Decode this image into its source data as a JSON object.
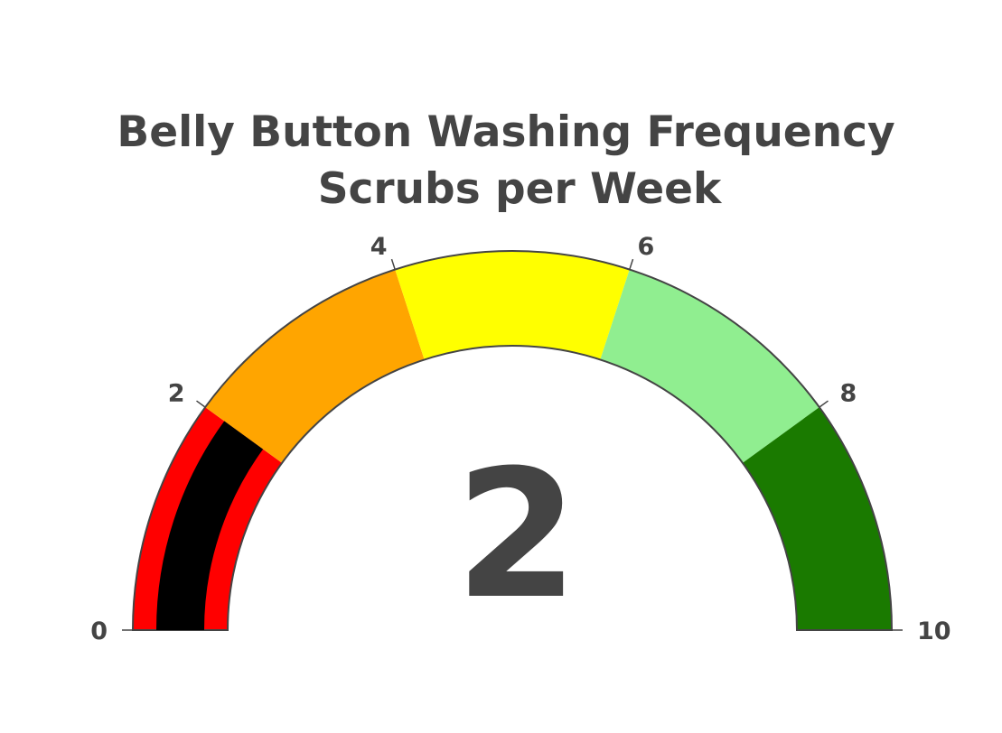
{
  "chart_data": {
    "type": "gauge",
    "title": [
      "Belly Button Washing Frequency",
      "Scrubs per Week"
    ],
    "value": 2,
    "value_label": "2",
    "range": [
      0,
      10
    ],
    "ticks": [
      0,
      2,
      4,
      6,
      8,
      10
    ],
    "tick_labels": [
      "0",
      "2",
      "4",
      "6",
      "8",
      "10"
    ],
    "steps": [
      {
        "range": [
          0,
          2
        ],
        "color": "#ff0000"
      },
      {
        "range": [
          2,
          4
        ],
        "color": "#ffa500"
      },
      {
        "range": [
          4,
          6
        ],
        "color": "#ffff00"
      },
      {
        "range": [
          6,
          8
        ],
        "color": "#90ee90"
      },
      {
        "range": [
          8,
          10
        ],
        "color": "#1a7a00"
      }
    ],
    "bar_color": "#000000",
    "outline_color": "#444444",
    "text_color": "#444444"
  }
}
